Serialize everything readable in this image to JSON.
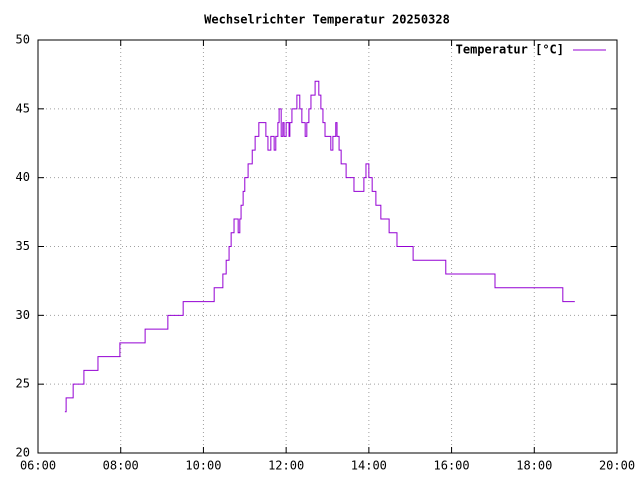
{
  "chart_data": {
    "type": "line",
    "title": "Wechselrichter Temperatur 20250328",
    "steps": true,
    "grid": true,
    "legend": "top-right",
    "xlim": [
      6,
      20
    ],
    "xticks": [
      {
        "value": 6,
        "label": "06:00"
      },
      {
        "value": 8,
        "label": "08:00"
      },
      {
        "value": 10,
        "label": "10:00"
      },
      {
        "value": 12,
        "label": "12:00"
      },
      {
        "value": 14,
        "label": "14:00"
      },
      {
        "value": 16,
        "label": "16:00"
      },
      {
        "value": 18,
        "label": "18:00"
      },
      {
        "value": 20,
        "label": "20:00"
      }
    ],
    "ylim": [
      20,
      50
    ],
    "yticks": [
      20,
      25,
      30,
      35,
      40,
      45,
      50
    ],
    "x": [
      6.65,
      6.68,
      6.85,
      7.11,
      7.45,
      7.98,
      8.59,
      9.14,
      9.51,
      10.26,
      10.47,
      10.55,
      10.62,
      10.67,
      10.74,
      10.84,
      10.88,
      10.91,
      10.96,
      11.0,
      11.08,
      11.18,
      11.25,
      11.34,
      11.51,
      11.56,
      11.63,
      11.71,
      11.75,
      11.8,
      11.83,
      11.88,
      11.92,
      11.95,
      12.0,
      12.07,
      12.09,
      12.14,
      12.26,
      12.33,
      12.38,
      12.46,
      12.5,
      12.55,
      12.6,
      12.7,
      12.79,
      12.84,
      12.89,
      12.94,
      13.08,
      13.13,
      13.2,
      13.23,
      13.28,
      13.33,
      13.45,
      13.64,
      13.88,
      13.93,
      14.0,
      14.08,
      14.17,
      14.29,
      14.49,
      14.68,
      15.07,
      15.86,
      17.05,
      18.69,
      18.98
    ],
    "series": [
      {
        "name": "Temperatur [°C]",
        "color": "#9400d3",
        "values": [
          23,
          24,
          25,
          26,
          27,
          28,
          29,
          30,
          31,
          32,
          33,
          34,
          35,
          36,
          37,
          36,
          37,
          38,
          39,
          40,
          41,
          42,
          43,
          44,
          43,
          42,
          43,
          42,
          43,
          44,
          45,
          43,
          44,
          43,
          44,
          43,
          44,
          45,
          46,
          45,
          44,
          43,
          44,
          45,
          46,
          47,
          46,
          45,
          44,
          43,
          42,
          43,
          44,
          43,
          42,
          41,
          40,
          39,
          40,
          41,
          40,
          39,
          38,
          37,
          36,
          35,
          34,
          33,
          32,
          31,
          31
        ]
      }
    ]
  }
}
